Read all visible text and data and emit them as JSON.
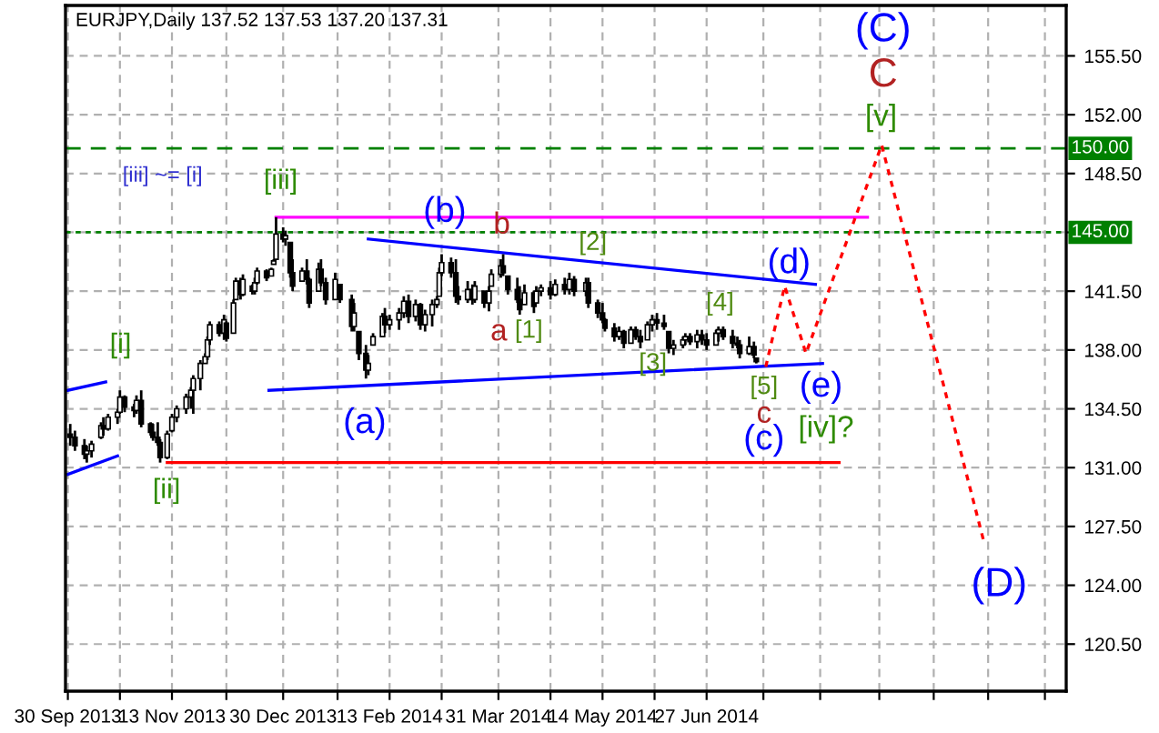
{
  "chart_data": {
    "type": "candlestick",
    "title": "EURJPY,Daily 137.52 137.53 137.20 137.31",
    "color": "#000000",
    "x": [
      "2013-10-01",
      "2013-10-03",
      "2013-10-07",
      "2013-10-08",
      "2013-10-10",
      "2013-10-14",
      "2013-10-15",
      "2013-10-17",
      "2013-10-21",
      "2013-10-22",
      "2013-10-24",
      "2013-10-28",
      "2013-10-29",
      "2013-10-31",
      "2013-11-04",
      "2013-11-05",
      "2013-11-07",
      "2013-11-08",
      "2013-11-11",
      "2013-11-13",
      "2013-11-15",
      "2013-11-19",
      "2013-11-21",
      "2013-11-22",
      "2013-11-25",
      "2013-11-27",
      "2013-11-28",
      "2013-11-29",
      "2013-12-03",
      "2013-12-05",
      "2013-12-06",
      "2013-12-09",
      "2013-12-10",
      "2013-12-12",
      "2013-12-13",
      "2013-12-17",
      "2013-12-18",
      "2013-12-19",
      "2013-12-23",
      "2013-12-25",
      "2013-12-26",
      "2013-12-27",
      "2013-12-30",
      "2013-12-31",
      "2014-01-02",
      "2014-01-03",
      "2014-01-07",
      "2014-01-09",
      "2014-01-10",
      "2014-01-14",
      "2014-01-15",
      "2014-01-17",
      "2014-01-21",
      "2014-01-23",
      "2014-01-28",
      "2014-01-29",
      "2014-01-31",
      "2014-02-03",
      "2014-02-04",
      "2014-02-06",
      "2014-02-10",
      "2014-02-11",
      "2014-02-13",
      "2014-02-17",
      "2014-02-19",
      "2014-02-21",
      "2014-02-24",
      "2014-02-26",
      "2014-02-28",
      "2014-03-03",
      "2014-03-05",
      "2014-03-06",
      "2014-03-07",
      "2014-03-11",
      "2014-03-13",
      "2014-03-14",
      "2014-03-18",
      "2014-03-20",
      "2014-03-21",
      "2014-03-25",
      "2014-03-27",
      "2014-03-28",
      "2014-04-01",
      "2014-04-02",
      "2014-04-04",
      "2014-04-08",
      "2014-04-09",
      "2014-04-11",
      "2014-04-15",
      "2014-04-16",
      "2014-04-18",
      "2014-04-22",
      "2014-04-24",
      "2014-04-28",
      "2014-04-30",
      "2014-05-02",
      "2014-05-07",
      "2014-05-08",
      "2014-05-12",
      "2014-05-14",
      "2014-05-15",
      "2014-05-19",
      "2014-05-21",
      "2014-05-23",
      "2014-05-26",
      "2014-05-28",
      "2014-05-30",
      "2014-06-02",
      "2014-06-04",
      "2014-06-06",
      "2014-06-09",
      "2014-06-11",
      "2014-06-13",
      "2014-06-17",
      "2014-06-18",
      "2014-06-20",
      "2014-06-23",
      "2014-06-25",
      "2014-06-27",
      "2014-07-01",
      "2014-07-02",
      "2014-07-04",
      "2014-07-08",
      "2014-07-10",
      "2014-07-11",
      "2014-07-15",
      "2014-07-17",
      "2014-07-18"
    ],
    "ohlc": [
      [
        133.0,
        133.6,
        132.3,
        132.8
      ],
      [
        132.8,
        133.2,
        132.0,
        132.3
      ],
      [
        132.3,
        132.7,
        131.5,
        131.8
      ],
      [
        131.8,
        132.3,
        131.3,
        132.0
      ],
      [
        132.0,
        132.6,
        131.6,
        132.4
      ],
      [
        132.8,
        133.7,
        132.7,
        133.5
      ],
      [
        133.5,
        134.0,
        132.9,
        133.3
      ],
      [
        133.3,
        134.2,
        133.2,
        134.0
      ],
      [
        134.0,
        134.5,
        133.6,
        134.3
      ],
      [
        134.3,
        135.6,
        134.2,
        135.2
      ],
      [
        135.2,
        135.3,
        134.3,
        134.6
      ],
      [
        134.6,
        134.8,
        134.0,
        134.4
      ],
      [
        134.4,
        135.3,
        134.2,
        135.0
      ],
      [
        135.0,
        135.6,
        133.4,
        133.6
      ],
      [
        133.6,
        133.7,
        132.9,
        133.1
      ],
      [
        133.1,
        133.6,
        132.6,
        132.8
      ],
      [
        132.8,
        133.7,
        132.3,
        132.5
      ],
      [
        132.5,
        132.7,
        131.3,
        131.6
      ],
      [
        131.6,
        133.2,
        131.5,
        133.0
      ],
      [
        133.2,
        134.2,
        133.1,
        134.0
      ],
      [
        134.0,
        134.7,
        133.7,
        134.5
      ],
      [
        134.5,
        135.4,
        134.2,
        135.2
      ],
      [
        135.2,
        135.8,
        134.5,
        135.6
      ],
      [
        135.6,
        136.5,
        134.2,
        136.3
      ],
      [
        136.3,
        137.4,
        135.6,
        137.2
      ],
      [
        137.2,
        137.8,
        137.2,
        137.6
      ],
      [
        137.6,
        138.8,
        137.4,
        138.6
      ],
      [
        138.6,
        139.7,
        138.3,
        139.5
      ],
      [
        139.5,
        139.7,
        138.8,
        139.0
      ],
      [
        139.0,
        140.1,
        138.6,
        139.8
      ],
      [
        139.6,
        139.7,
        138.5,
        138.7
      ],
      [
        139.0,
        141.0,
        139.0,
        140.8
      ],
      [
        141.0,
        142.3,
        141.0,
        142.1
      ],
      [
        142.1,
        142.3,
        141.0,
        141.3
      ],
      [
        141.3,
        142.5,
        141.2,
        142.2
      ],
      [
        141.8,
        141.9,
        141.3,
        141.5
      ],
      [
        141.5,
        142.3,
        141.3,
        142.0
      ],
      [
        142.0,
        142.9,
        141.9,
        142.7
      ],
      [
        142.7,
        142.8,
        142.1,
        142.3
      ],
      [
        142.4,
        142.9,
        142.4,
        142.8
      ],
      [
        143.1,
        143.4,
        143.1,
        143.3
      ],
      [
        143.4,
        145.9,
        143.4,
        144.9
      ],
      [
        144.9,
        145.3,
        144.4,
        144.6
      ],
      [
        144.6,
        145.1,
        144.2,
        144.8
      ],
      [
        144.4,
        144.4,
        142.3,
        142.6
      ],
      [
        142.6,
        143.4,
        141.5,
        141.8
      ],
      [
        142.1,
        142.9,
        142.1,
        142.7
      ],
      [
        142.7,
        143.4,
        141.9,
        142.2
      ],
      [
        142.2,
        142.3,
        140.5,
        140.8
      ],
      [
        141.5,
        143.2,
        141.5,
        142.8
      ],
      [
        142.8,
        143.4,
        141.8,
        142.0
      ],
      [
        142.0,
        142.3,
        140.7,
        141.0
      ],
      [
        141.0,
        142.6,
        141.0,
        142.2
      ],
      [
        141.9,
        141.9,
        140.8,
        141.0
      ],
      [
        141.0,
        141.3,
        139.1,
        139.4
      ],
      [
        139.4,
        140.8,
        139.1,
        140.2
      ],
      [
        139.1,
        139.1,
        137.4,
        137.8
      ],
      [
        137.8,
        138.3,
        136.3,
        136.8
      ],
      [
        136.8,
        137.7,
        136.5,
        137.2
      ],
      [
        138.3,
        139.0,
        138.3,
        138.8
      ],
      [
        138.8,
        140.2,
        138.8,
        140.0
      ],
      [
        140.0,
        140.5,
        139.0,
        139.5
      ],
      [
        139.5,
        140.1,
        139.2,
        139.8
      ],
      [
        139.8,
        140.5,
        139.2,
        140.2
      ],
      [
        140.2,
        141.2,
        139.9,
        140.9
      ],
      [
        140.9,
        141.3,
        139.6,
        140.0
      ],
      [
        140.0,
        141.0,
        139.7,
        140.7
      ],
      [
        140.7,
        140.8,
        139.2,
        139.5
      ],
      [
        139.5,
        140.4,
        139.1,
        140.1
      ],
      [
        140.1,
        141.0,
        139.4,
        140.7
      ],
      [
        140.7,
        141.2,
        140.5,
        141.0
      ],
      [
        141.2,
        142.9,
        141.2,
        142.6
      ],
      [
        142.6,
        143.7,
        142.4,
        143.2
      ],
      [
        143.2,
        143.5,
        142.3,
        142.6
      ],
      [
        142.6,
        143.4,
        140.8,
        141.2
      ],
      [
        141.2,
        141.8,
        140.7,
        141.0
      ],
      [
        141.0,
        142.1,
        140.8,
        141.6
      ],
      [
        141.6,
        141.9,
        140.7,
        141.0
      ],
      [
        141.0,
        142.1,
        140.8,
        141.8
      ],
      [
        141.5,
        141.5,
        140.5,
        140.8
      ],
      [
        140.8,
        141.8,
        140.3,
        141.5
      ],
      [
        141.8,
        142.8,
        141.8,
        142.5
      ],
      [
        142.5,
        143.4,
        142.3,
        143.0
      ],
      [
        143.0,
        143.7,
        142.4,
        142.6
      ],
      [
        142.4,
        142.4,
        141.3,
        141.6
      ],
      [
        141.6,
        142.3,
        140.8,
        141.0
      ],
      [
        141.0,
        141.8,
        140.1,
        140.4
      ],
      [
        140.7,
        141.9,
        140.7,
        141.4
      ],
      [
        141.4,
        141.5,
        140.2,
        140.6
      ],
      [
        140.8,
        141.8,
        140.8,
        141.5
      ],
      [
        141.5,
        141.9,
        141.2,
        141.7
      ],
      [
        141.7,
        142.1,
        141.0,
        141.3
      ],
      [
        141.3,
        142.2,
        141.2,
        141.9
      ],
      [
        141.9,
        142.3,
        141.3,
        141.6
      ],
      [
        141.6,
        142.6,
        141.3,
        142.2
      ],
      [
        142.2,
        142.4,
        141.2,
        141.5
      ],
      [
        141.5,
        142.3,
        141.2,
        142.0
      ],
      [
        142.0,
        142.3,
        140.5,
        140.8
      ],
      [
        140.8,
        141.0,
        139.9,
        140.2
      ],
      [
        140.2,
        140.8,
        139.6,
        139.8
      ],
      [
        139.8,
        139.9,
        139.1,
        139.3
      ],
      [
        139.3,
        139.6,
        138.5,
        138.8
      ],
      [
        138.8,
        139.4,
        138.6,
        139.1
      ],
      [
        139.1,
        139.2,
        138.1,
        138.4
      ],
      [
        138.4,
        139.4,
        138.4,
        139.2
      ],
      [
        139.2,
        139.4,
        138.6,
        138.8
      ],
      [
        138.8,
        139.2,
        138.1,
        138.5
      ],
      [
        138.6,
        139.7,
        138.6,
        139.5
      ],
      [
        139.5,
        140.1,
        139.1,
        139.8
      ],
      [
        139.8,
        140.2,
        139.2,
        139.6
      ],
      [
        139.6,
        140.1,
        139.2,
        139.4
      ],
      [
        139.1,
        139.1,
        137.8,
        138.1
      ],
      [
        138.1,
        138.6,
        137.7,
        138.3
      ],
      [
        138.3,
        138.8,
        138.1,
        138.6
      ],
      [
        138.6,
        139.0,
        138.3,
        138.8
      ],
      [
        138.8,
        139.0,
        138.3,
        138.5
      ],
      [
        138.5,
        139.2,
        138.1,
        138.9
      ],
      [
        138.9,
        139.2,
        138.3,
        138.6
      ],
      [
        138.6,
        139.0,
        138.0,
        138.3
      ],
      [
        138.3,
        139.2,
        138.3,
        139.0
      ],
      [
        139.0,
        139.4,
        138.5,
        139.2
      ],
      [
        139.2,
        139.4,
        138.6,
        138.8
      ],
      [
        138.8,
        139.2,
        138.1,
        138.4
      ],
      [
        138.4,
        138.8,
        138.1,
        138.3
      ],
      [
        138.3,
        138.6,
        137.5,
        137.8
      ],
      [
        137.8,
        138.8,
        137.7,
        138.2
      ],
      [
        138.2,
        138.5,
        137.5,
        137.7
      ],
      [
        137.52,
        137.53,
        137.2,
        137.31
      ]
    ],
    "series": [
      {
        "type": "line",
        "color": "#0000ff",
        "line_style": "solid",
        "x": [
          "2013-09-30",
          "2013-10-16"
        ],
        "values": [
          135.6,
          136.1
        ]
      },
      {
        "type": "line",
        "color": "#0000ff",
        "line_style": "solid",
        "x": [
          "2013-09-30",
          "2013-10-21"
        ],
        "values": [
          130.6,
          131.7
        ]
      },
      {
        "type": "line",
        "color": "#ff0000",
        "line_style": "solid",
        "x": [
          "2013-11-11",
          "2014-08-22"
        ],
        "values": [
          131.3,
          131.3
        ]
      },
      {
        "type": "line",
        "color": "#ff00ff",
        "line_style": "solid",
        "x": [
          "2013-12-27",
          "2014-09-03"
        ],
        "values": [
          145.9,
          145.9
        ]
      },
      {
        "type": "line",
        "color": "#0000ff",
        "line_style": "solid",
        "x": [
          "2014-02-04",
          "2014-08-12"
        ],
        "values": [
          144.6,
          141.9
        ]
      },
      {
        "type": "line",
        "color": "#0000ff",
        "line_style": "solid",
        "x": [
          "2013-12-24",
          "2014-08-15"
        ],
        "values": [
          135.6,
          137.2
        ]
      },
      {
        "type": "line",
        "color": "#ff0000",
        "line_style": "dotted",
        "x": [
          "2014-07-22",
          "2014-07-30",
          "2014-08-08",
          "2014-09-09",
          "2014-10-22"
        ],
        "values": [
          137.0,
          141.8,
          137.8,
          150.2,
          126.7
        ]
      }
    ],
    "ref_lines": [
      {
        "axis": "y",
        "value": 150,
        "label": "150.00",
        "color": "#008000",
        "line_style": "dashed"
      },
      {
        "axis": "y",
        "value": 145,
        "label": "145.00",
        "color": "#008000",
        "line_style": "dotted"
      }
    ],
    "annotations": [
      "[iii] ~= [i]",
      "[i]",
      "[ii]",
      "[iii]",
      "(a)",
      "(b)",
      "b",
      "a",
      "[1]",
      "[2]",
      "[3]",
      "[4]",
      "[5]",
      "c",
      "(c)",
      "(d)",
      "(e)",
      "[iv]?",
      "[v]",
      "C",
      "(C)",
      "(D)"
    ],
    "xlim": [
      "2013-09-29",
      "2014-11-26"
    ],
    "ylim": [
      117.7,
      158.5
    ],
    "xticks": [
      {
        "value": "2013-09-30",
        "label": "30 Sep 2013"
      },
      {
        "value": "2013-10-22",
        "label": null
      },
      {
        "value": "2013-11-13",
        "label": "13 Nov 2013"
      },
      {
        "value": "2013-12-06",
        "label": null
      },
      {
        "value": "2013-12-30",
        "label": "30 Dec 2013"
      },
      {
        "value": "2014-01-22",
        "label": null
      },
      {
        "value": "2014-02-13",
        "label": "13 Feb 2014"
      },
      {
        "value": "2014-03-07",
        "label": null
      },
      {
        "value": "2014-03-31",
        "label": "31 Mar 2014"
      },
      {
        "value": "2014-04-22",
        "label": null
      },
      {
        "value": "2014-05-14",
        "label": "14 May 2014"
      },
      {
        "value": "2014-06-05",
        "label": null
      },
      {
        "value": "2014-06-27",
        "label": "27 Jun 2014"
      },
      {
        "value": "2014-07-21",
        "label": null
      },
      {
        "value": "2014-08-14",
        "label": null
      },
      {
        "value": "2014-09-08",
        "label": null
      },
      {
        "value": "2014-10-01",
        "label": null
      },
      {
        "value": "2014-10-24",
        "label": null
      },
      {
        "value": "2014-11-17",
        "label": null
      }
    ],
    "yticks": [
      {
        "value": 155.5,
        "label": "155.50"
      },
      {
        "value": 152,
        "label": "152.00"
      },
      {
        "value": 148.5,
        "label": "148.50"
      },
      {
        "value": 145,
        "label": null
      },
      {
        "value": 141.5,
        "label": "141.50"
      },
      {
        "value": 138,
        "label": "138.00"
      },
      {
        "value": 134.5,
        "label": "134.50"
      },
      {
        "value": 131,
        "label": "131.00"
      },
      {
        "value": 127.5,
        "label": "127.50"
      },
      {
        "value": 124,
        "label": "124.00"
      },
      {
        "value": 120.5,
        "label": "120.50"
      }
    ],
    "grid": true
  }
}
